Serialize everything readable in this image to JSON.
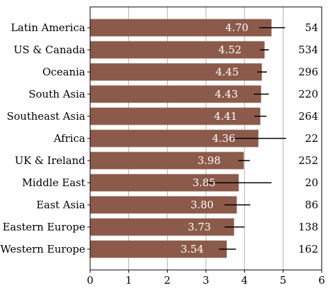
{
  "chart_data": {
    "type": "bar",
    "orientation": "horizontal",
    "categories": [
      "Latin America",
      "US & Canada",
      "Oceania",
      "South Asia",
      "Southeast Asia",
      "Africa",
      "UK & Ireland",
      "Middle East",
      "East Asia",
      "Eastern Europe",
      "Western Europe"
    ],
    "values": [
      4.7,
      4.52,
      4.45,
      4.43,
      4.41,
      4.36,
      3.98,
      3.85,
      3.8,
      3.73,
      3.54
    ],
    "value_labels": [
      "4.70",
      "4.52",
      "4.45",
      "4.43",
      "4.41",
      "4.36",
      "3.98",
      "3.85",
      "3.80",
      "3.73",
      "3.54"
    ],
    "error_low": [
      4.38,
      4.4,
      4.33,
      4.24,
      4.26,
      3.68,
      3.84,
      3.0,
      3.48,
      3.48,
      3.34
    ],
    "error_high": [
      5.05,
      4.63,
      4.58,
      4.63,
      4.57,
      5.08,
      4.14,
      4.7,
      4.15,
      4.0,
      3.78
    ],
    "counts": [
      "54",
      "534",
      "296",
      "220",
      "264",
      "22",
      "252",
      "20",
      "86",
      "138",
      "162"
    ],
    "xticks": [
      "0",
      "1",
      "2",
      "3",
      "4",
      "5",
      "6"
    ],
    "xlim": [
      0,
      6
    ],
    "grid": "vertical",
    "bar_color": "#8b5a4a",
    "title": "",
    "xlabel": "",
    "ylabel": ""
  }
}
